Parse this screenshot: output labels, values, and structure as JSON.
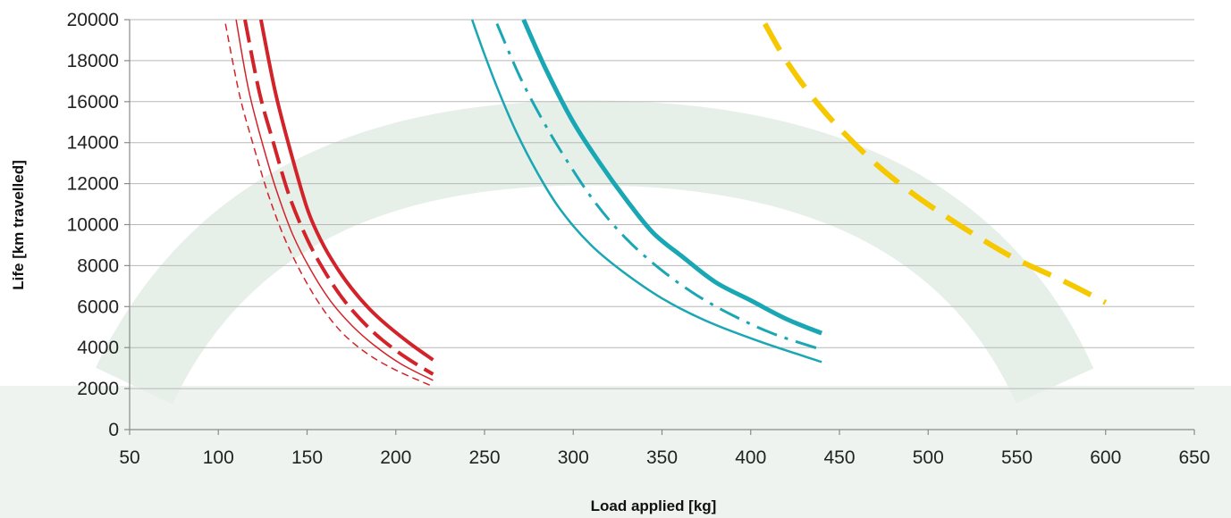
{
  "chart_data": {
    "type": "line",
    "title": "",
    "xlabel": "Load applied [kg]",
    "ylabel": "Life [km travelled]",
    "xlim": [
      50,
      650
    ],
    "ylim": [
      0,
      20000
    ],
    "x_ticks": [
      50,
      100,
      150,
      200,
      250,
      300,
      350,
      400,
      450,
      500,
      550,
      600,
      650
    ],
    "y_ticks": [
      0,
      2000,
      4000,
      6000,
      8000,
      10000,
      12000,
      14000,
      16000,
      18000,
      20000
    ],
    "grid": "horizontal",
    "legend": "none",
    "background": {
      "arch_color": "#e6efe8",
      "band_color": "#eef3ef"
    },
    "series": [
      {
        "color": "#d2232a",
        "dash": "solid",
        "width": 4,
        "points": [
          [
            124,
            20000
          ],
          [
            132,
            16500
          ],
          [
            140,
            13800
          ],
          [
            150,
            10800
          ],
          [
            158,
            9200
          ],
          [
            166,
            8000
          ],
          [
            175,
            6900
          ],
          [
            185,
            5900
          ],
          [
            195,
            5100
          ],
          [
            208,
            4200
          ],
          [
            221,
            3400
          ]
        ]
      },
      {
        "color": "#d2232a",
        "dash": "longdash",
        "width": 4,
        "points": [
          [
            115,
            20000
          ],
          [
            123,
            16500
          ],
          [
            131,
            14000
          ],
          [
            140,
            11400
          ],
          [
            150,
            9300
          ],
          [
            160,
            7700
          ],
          [
            170,
            6400
          ],
          [
            181,
            5300
          ],
          [
            192,
            4400
          ],
          [
            206,
            3500
          ],
          [
            221,
            2700
          ]
        ]
      },
      {
        "color": "#d2232a",
        "dash": "solid",
        "width": 1.5,
        "points": [
          [
            110,
            20000
          ],
          [
            117,
            16600
          ],
          [
            125,
            13900
          ],
          [
            133,
            11600
          ],
          [
            142,
            9500
          ],
          [
            152,
            7800
          ],
          [
            163,
            6300
          ],
          [
            175,
            5100
          ],
          [
            188,
            4100
          ],
          [
            203,
            3200
          ],
          [
            221,
            2400
          ]
        ]
      },
      {
        "color": "#d2232a",
        "dash": "shortdash",
        "width": 1.5,
        "points": [
          [
            104,
            19800
          ],
          [
            112,
            16300
          ],
          [
            120,
            13800
          ],
          [
            128,
            11500
          ],
          [
            137,
            9400
          ],
          [
            147,
            7600
          ],
          [
            158,
            6000
          ],
          [
            170,
            4700
          ],
          [
            184,
            3700
          ],
          [
            200,
            2900
          ],
          [
            221,
            2100
          ]
        ]
      },
      {
        "color": "#1aa7b4",
        "dash": "solid",
        "width": 5,
        "points": [
          [
            272,
            20000
          ],
          [
            285,
            17500
          ],
          [
            300,
            15000
          ],
          [
            315,
            13000
          ],
          [
            330,
            11200
          ],
          [
            345,
            9600
          ],
          [
            362,
            8400
          ],
          [
            380,
            7200
          ],
          [
            400,
            6300
          ],
          [
            420,
            5400
          ],
          [
            440,
            4700
          ]
        ]
      },
      {
        "color": "#1aa7b4",
        "dash": "dashdot",
        "width": 3,
        "points": [
          [
            257,
            19800
          ],
          [
            270,
            17200
          ],
          [
            284,
            14900
          ],
          [
            298,
            12900
          ],
          [
            313,
            11000
          ],
          [
            330,
            9300
          ],
          [
            348,
            7900
          ],
          [
            367,
            6700
          ],
          [
            387,
            5700
          ],
          [
            412,
            4700
          ],
          [
            440,
            3900
          ]
        ]
      },
      {
        "color": "#1aa7b4",
        "dash": "solid",
        "width": 2.5,
        "points": [
          [
            243,
            20000
          ],
          [
            250,
            18300
          ],
          [
            258,
            16500
          ],
          [
            268,
            14500
          ],
          [
            280,
            12500
          ],
          [
            293,
            10700
          ],
          [
            310,
            9000
          ],
          [
            328,
            7700
          ],
          [
            350,
            6400
          ],
          [
            375,
            5300
          ],
          [
            405,
            4300
          ],
          [
            440,
            3300
          ]
        ]
      },
      {
        "color": "#f5c800",
        "dash": "heavydash",
        "width": 6,
        "points": [
          [
            408,
            19800
          ],
          [
            420,
            18000
          ],
          [
            435,
            16200
          ],
          [
            450,
            14700
          ],
          [
            470,
            13000
          ],
          [
            490,
            11600
          ],
          [
            510,
            10400
          ],
          [
            530,
            9300
          ],
          [
            550,
            8300
          ],
          [
            575,
            7300
          ],
          [
            600,
            6200
          ]
        ]
      }
    ]
  }
}
